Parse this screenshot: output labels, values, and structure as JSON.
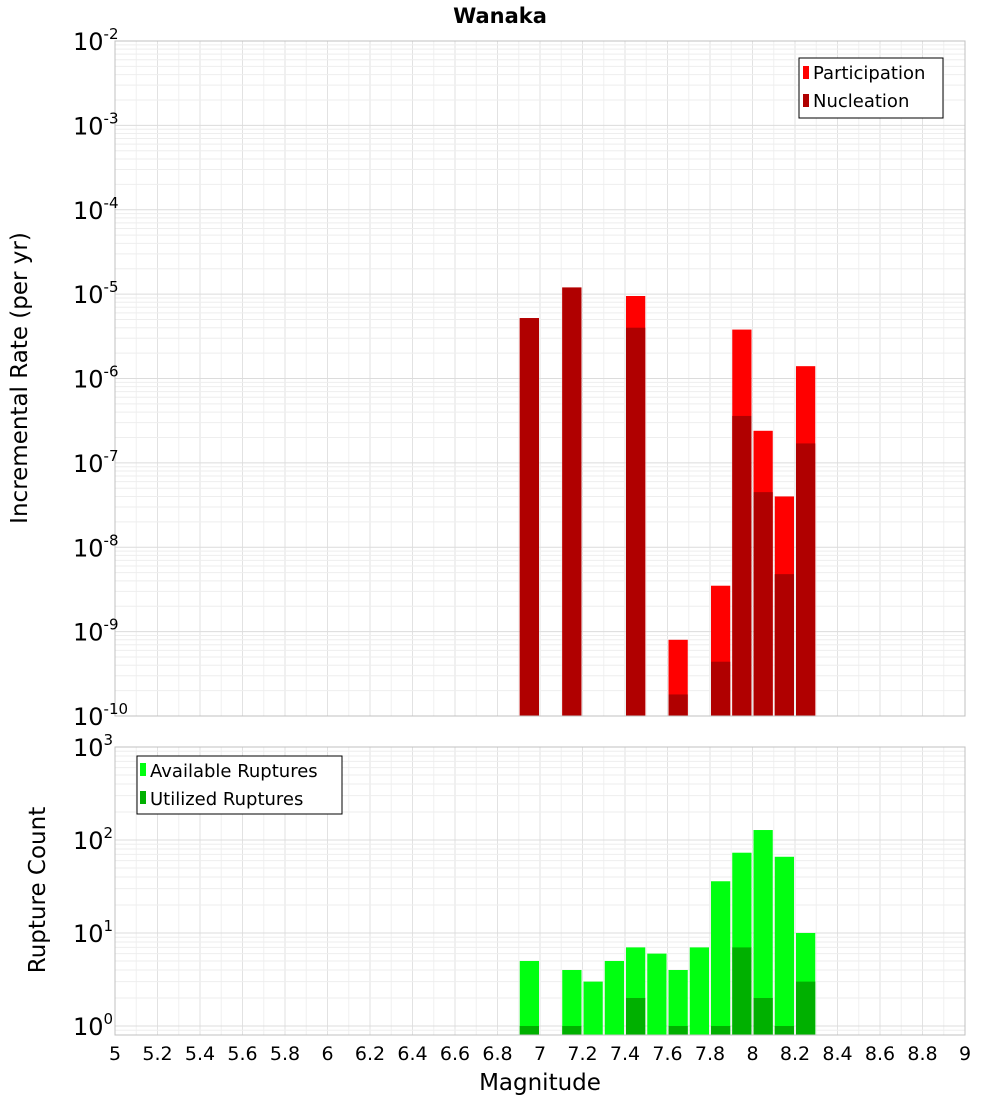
{
  "chart_data": [
    {
      "type": "bar",
      "title": "Wanaka",
      "xlabel": "",
      "ylabel": "Incremental Rate (per yr)",
      "yscale": "log",
      "ylim": [
        1e-10,
        0.01
      ],
      "xlim": [
        5,
        9
      ],
      "grid": true,
      "legend_placement": "top-right",
      "bar_width": 0.1,
      "series": [
        {
          "name": "Participation",
          "color": "#ff0000",
          "x": [
            6.95,
            7.15,
            7.45,
            7.65,
            7.85,
            7.95,
            8.05,
            8.15,
            8.25
          ],
          "values": [
            5.2e-06,
            1.2e-05,
            9.5e-06,
            8e-10,
            3.5e-09,
            3.8e-06,
            2.4e-07,
            4e-08,
            1.4e-06
          ]
        },
        {
          "name": "Nucleation",
          "color": "#b00000",
          "x": [
            6.95,
            7.15,
            7.45,
            7.65,
            7.85,
            7.95,
            8.05,
            8.15,
            8.25
          ],
          "values": [
            5.2e-06,
            1.2e-05,
            4e-06,
            1.8e-10,
            4.4e-10,
            3.6e-07,
            4.5e-08,
            4.8e-09,
            1.7e-07
          ]
        }
      ],
      "ytick_labels": [
        {
          "base": "10",
          "exp": "-2"
        },
        {
          "base": "10",
          "exp": "-3"
        },
        {
          "base": "10",
          "exp": "-4"
        },
        {
          "base": "10",
          "exp": "-5"
        },
        {
          "base": "10",
          "exp": "-6"
        },
        {
          "base": "10",
          "exp": "-7"
        },
        {
          "base": "10",
          "exp": "-8"
        },
        {
          "base": "10",
          "exp": "-9"
        },
        {
          "base": "10",
          "exp": "-10"
        }
      ]
    },
    {
      "type": "bar",
      "title": "",
      "xlabel": "Magnitude",
      "ylabel": "Rupture Count",
      "yscale": "log",
      "ylim": [
        0.8,
        1000
      ],
      "xlim": [
        5,
        9
      ],
      "grid": true,
      "legend_placement": "top-left",
      "bar_width": 0.1,
      "series": [
        {
          "name": "Available Ruptures",
          "color": "#00ff10",
          "x": [
            6.95,
            7.15,
            7.25,
            7.35,
            7.45,
            7.55,
            7.65,
            7.75,
            7.85,
            7.95,
            8.05,
            8.15,
            8.25
          ],
          "values": [
            5,
            4,
            3,
            5,
            7,
            6,
            4,
            7,
            36,
            73,
            128,
            66,
            10
          ]
        },
        {
          "name": "Utilized Ruptures",
          "color": "#00b000",
          "x": [
            6.95,
            7.15,
            7.25,
            7.35,
            7.45,
            7.55,
            7.65,
            7.75,
            7.85,
            7.95,
            8.05,
            8.15,
            8.25
          ],
          "values": [
            1,
            1,
            0,
            0,
            2,
            0,
            1,
            0,
            1,
            7,
            2,
            1,
            3
          ]
        }
      ],
      "ytick_labels": [
        {
          "base": "10",
          "exp": "3"
        },
        {
          "base": "10",
          "exp": "2"
        },
        {
          "base": "10",
          "exp": "1"
        },
        {
          "base": "10",
          "exp": "0"
        }
      ],
      "xtick_labels": [
        "5",
        "5.2",
        "5.4",
        "5.6",
        "5.8",
        "6",
        "6.2",
        "6.4",
        "6.6",
        "6.8",
        "7",
        "7.2",
        "7.4",
        "7.6",
        "7.8",
        "8",
        "8.2",
        "8.4",
        "8.6",
        "8.8",
        "9"
      ]
    }
  ]
}
